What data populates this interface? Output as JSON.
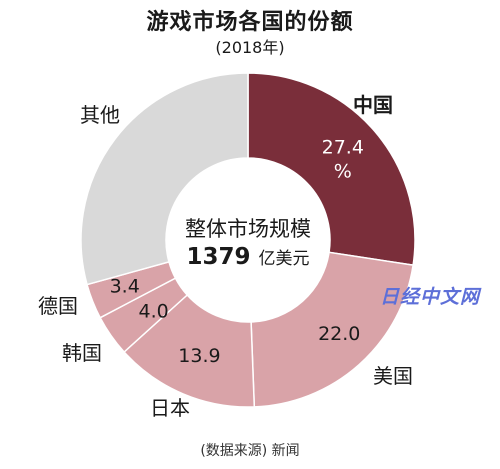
{
  "title": "游戏市场各国的份额",
  "subtitle": "(2018年)",
  "source": "(数据来源) 新闻",
  "watermark": "日经中文网",
  "center": {
    "line1": "整体市场规模",
    "total": "1379",
    "unit": "亿美元"
  },
  "chart_data": {
    "type": "pie",
    "variant": "donut",
    "title": "游戏市场各国的份额",
    "subtitle": "(2018年)",
    "total_value": 1379,
    "total_unit": "亿美元",
    "slices": [
      {
        "name": "中国",
        "value": 27.4,
        "label": "27.4\n%",
        "color": "#7a2e3a"
      },
      {
        "name": "美国",
        "value": 22.0,
        "label": "22.0",
        "color": "#d9a3a8"
      },
      {
        "name": "日本",
        "value": 13.9,
        "label": "13.9",
        "color": "#d9a3a8"
      },
      {
        "name": "韩国",
        "value": 4.0,
        "label": "4.0",
        "color": "#d9a3a8"
      },
      {
        "name": "德国",
        "value": 3.4,
        "label": "3.4",
        "color": "#d9a3a8"
      },
      {
        "name": "其他",
        "value": 29.3,
        "label": "",
        "color": "#d9d9d9"
      }
    ]
  }
}
